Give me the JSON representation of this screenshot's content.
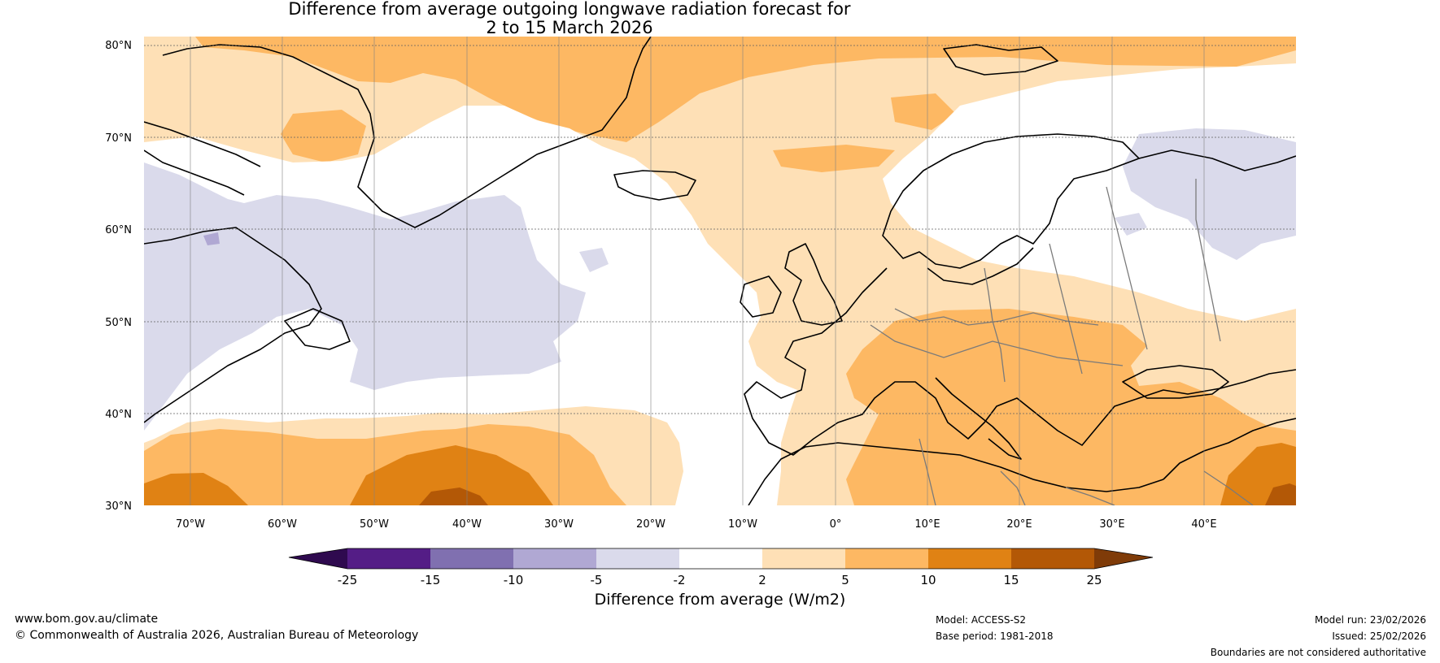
{
  "title": {
    "line1": "Difference from average outgoing longwave radiation forecast for",
    "line2": "2 to 15 March 2026"
  },
  "map": {
    "lat_labels": [
      "80°N",
      "70°N",
      "60°N",
      "50°N",
      "40°N",
      "30°N"
    ],
    "lon_labels": [
      "70°W",
      "60°W",
      "50°W",
      "40°W",
      "30°W",
      "20°W",
      "10°W",
      "0°",
      "10°E",
      "20°E",
      "30°E",
      "40°E"
    ],
    "extent": {
      "lon_min": -75,
      "lon_max": 50,
      "lat_min": 30,
      "lat_max": 80
    }
  },
  "colorbar": {
    "label": "Difference from average (W/m2)",
    "ticks": [
      "-25",
      "-15",
      "-10",
      "-5",
      "-2",
      "2",
      "5",
      "10",
      "15",
      "25"
    ],
    "colors": {
      "below": "#2f0a4f",
      "bins": [
        "#541d86",
        "#8070b0",
        "#b0a8d3",
        "#dadaeb",
        "#ffffff",
        "#fee0b6",
        "#fdb863",
        "#e08214",
        "#b35806"
      ],
      "above": "#7f3b08"
    }
  },
  "footer": {
    "website": "www.bom.gov.au/climate",
    "copyright": "© Commonwealth of Australia 2026, Australian Bureau of Meteorology",
    "model": "Model: ACCESS-S2",
    "base_period": "Base period: 1981-2018",
    "model_run": "Model run: 23/02/2026",
    "issued": "Issued: 25/02/2026",
    "disclaimer": "Boundaries are not considered authoritative"
  }
}
